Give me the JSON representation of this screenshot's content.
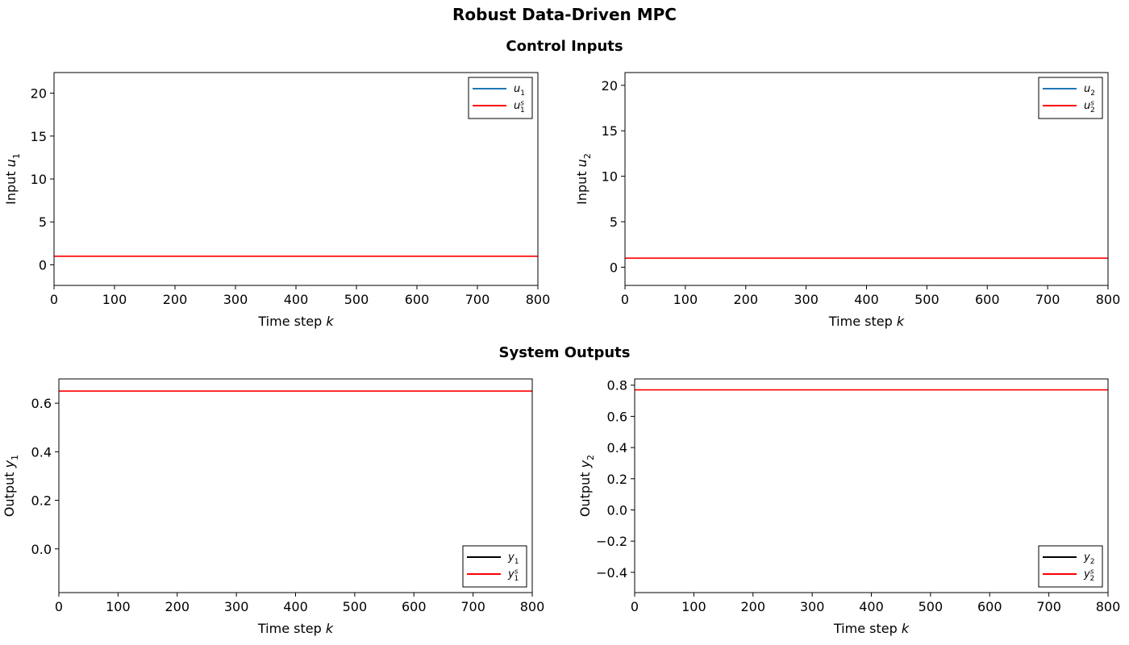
{
  "figure": {
    "title": "Robust Data-Driven MPC",
    "section_titles": [
      "Control Inputs",
      "System Outputs"
    ]
  },
  "colors": {
    "input_trajectory": "#1f77b4",
    "setpoint": "#ff0000",
    "output_trajectory": "#000000"
  },
  "chart_data": [
    {
      "type": "line",
      "xlabel": "Time step k",
      "ylabel": "Input u1",
      "xlim": [
        0,
        800
      ],
      "ylim": [
        -2.4,
        22.4
      ],
      "xticks": [
        0,
        100,
        200,
        300,
        400,
        500,
        600,
        700,
        800
      ],
      "yticks": [
        0,
        5,
        10,
        15,
        20
      ],
      "grid": false,
      "legend_position": "upper right",
      "series": [
        {
          "name": "u1",
          "color": "#1f77b4",
          "x": [],
          "y": []
        },
        {
          "name": "u1s",
          "color": "#ff0000",
          "x": [
            0,
            800
          ],
          "y": [
            1.0,
            1.0
          ]
        }
      ]
    },
    {
      "type": "line",
      "xlabel": "Time step k",
      "ylabel": "Input u2",
      "xlim": [
        0,
        800
      ],
      "ylim": [
        -2.0,
        21.4
      ],
      "xticks": [
        0,
        100,
        200,
        300,
        400,
        500,
        600,
        700,
        800
      ],
      "yticks": [
        0,
        5,
        10,
        15,
        20
      ],
      "grid": false,
      "legend_position": "upper right",
      "series": [
        {
          "name": "u2",
          "color": "#1f77b4",
          "x": [],
          "y": []
        },
        {
          "name": "u2s",
          "color": "#ff0000",
          "x": [
            0,
            800
          ],
          "y": [
            1.0,
            1.0
          ]
        }
      ]
    },
    {
      "type": "line",
      "xlabel": "Time step k",
      "ylabel": "Output y1",
      "xlim": [
        0,
        800
      ],
      "ylim": [
        -0.18,
        0.7
      ],
      "xticks": [
        0,
        100,
        200,
        300,
        400,
        500,
        600,
        700,
        800
      ],
      "yticks": [
        0.0,
        0.2,
        0.4,
        0.6
      ],
      "grid": false,
      "legend_position": "lower right",
      "series": [
        {
          "name": "y1",
          "color": "#000000",
          "x": [],
          "y": []
        },
        {
          "name": "y1s",
          "color": "#ff0000",
          "x": [
            0,
            800
          ],
          "y": [
            0.65,
            0.65
          ]
        }
      ]
    },
    {
      "type": "line",
      "xlabel": "Time step k",
      "ylabel": "Output y2",
      "xlim": [
        0,
        800
      ],
      "ylim": [
        -0.53,
        0.84
      ],
      "xticks": [
        0,
        100,
        200,
        300,
        400,
        500,
        600,
        700,
        800
      ],
      "yticks": [
        -0.4,
        -0.2,
        0.0,
        0.2,
        0.4,
        0.6,
        0.8
      ],
      "grid": false,
      "legend_position": "lower right",
      "series": [
        {
          "name": "y2",
          "color": "#000000",
          "x": [],
          "y": []
        },
        {
          "name": "y2s",
          "color": "#ff0000",
          "x": [
            0,
            800
          ],
          "y": [
            0.77,
            0.77
          ]
        }
      ]
    }
  ]
}
